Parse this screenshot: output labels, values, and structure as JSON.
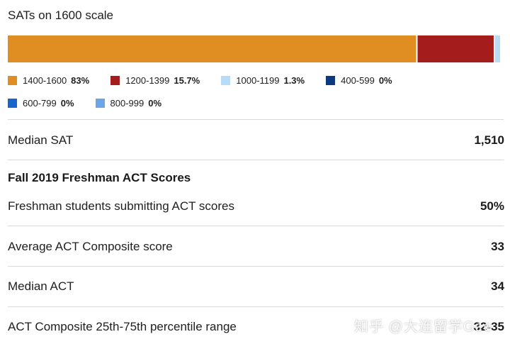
{
  "chart_data": {
    "type": "bar",
    "orientation": "horizontal-stacked",
    "title": "SATs on 1600 scale",
    "categories": [
      "1400-1600",
      "1200-1399",
      "1000-1199",
      "400-599",
      "600-799",
      "800-999"
    ],
    "values": [
      83,
      15.7,
      1.3,
      0,
      0,
      0
    ],
    "value_labels": [
      "83%",
      "15.7%",
      "1.3%",
      "0%",
      "0%",
      "0%"
    ],
    "colors": [
      "#e08e22",
      "#a51c1c",
      "#b8dcf7",
      "#0b3a7e",
      "#1667c9",
      "#6aa6e8"
    ],
    "xlim": [
      0,
      100
    ],
    "legend_placement": "bottom"
  },
  "stats": {
    "median_sat_label": "Median SAT",
    "median_sat_value": "1,510",
    "act_section_title": "Fall 2019 Freshman ACT Scores",
    "rows": [
      {
        "label": "Freshman students submitting ACT scores",
        "value": "50%"
      },
      {
        "label": "Average ACT Composite score",
        "value": "33"
      },
      {
        "label": "Median ACT",
        "value": "34"
      },
      {
        "label": "ACT Composite 25th-75th percentile range",
        "value": "32-35"
      }
    ]
  },
  "watermark": "知乎 @大连留学Gee"
}
